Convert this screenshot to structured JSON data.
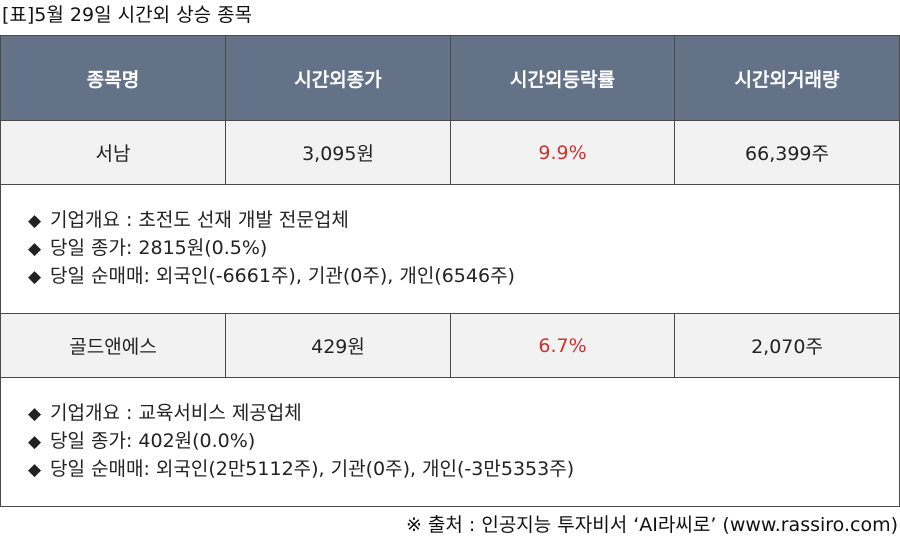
{
  "caption": "[표]5월 29일 시간외 상승 종목",
  "headers": [
    "종목명",
    "시간외종가",
    "시간외등락률",
    "시간외거래량"
  ],
  "bullet_symbol": "◆",
  "stocks": [
    {
      "name": "서남",
      "price": "3,095원",
      "rate": "9.9%",
      "volume": "66,399주",
      "details": [
        "기업개요 : 초전도 선재 개발 전문업체",
        "당일 종가: 2815원(0.5%)",
        "당일 순매매: 외국인(-6661주), 기관(0주), 개인(6546주)"
      ]
    },
    {
      "name": "골드앤에스",
      "price": "429원",
      "rate": "6.7%",
      "volume": "2,070주",
      "details": [
        "기업개요 : 교육서비스 제공업체",
        "당일 종가: 402원(0.0%)",
        "당일 순매매: 외국인(2만5112주), 기관(0주), 개인(-3만5353주)"
      ]
    }
  ],
  "source": "※ 출처 : 인공지능 투자비서 ‘AI라씨로’ (www.rassiro.com)",
  "colors": {
    "header_bg": "#647288",
    "row_bg": "#f2f2f2",
    "rate_red": "#d32f2f"
  }
}
